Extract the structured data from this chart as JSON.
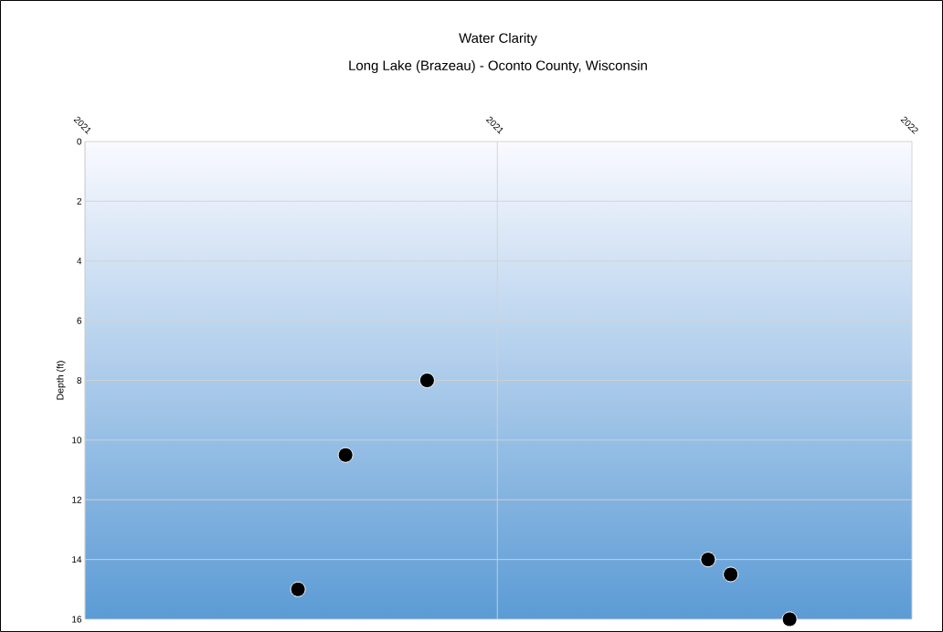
{
  "chart_data": {
    "type": "scatter",
    "title": "Water Clarity",
    "subtitle": "Long Lake (Brazeau) - Oconto County, Wisconsin",
    "ylabel": "Depth (ft)",
    "x": [
      "2021-04-05",
      "2021-04-26",
      "2021-06-01",
      "2021-10-03",
      "2021-10-13",
      "2021-11-08"
    ],
    "values": [
      15,
      10.5,
      8,
      14,
      14.5,
      16
    ],
    "color": "#000000",
    "marker": "circle",
    "xlim": [
      "2021-01-01",
      "2022-01-01"
    ],
    "xticks": [
      {
        "value": "2021-01-01",
        "label": "2021"
      },
      {
        "value": "2021-07-02",
        "label": "2021"
      },
      {
        "value": "2022-01-01",
        "label": "2022"
      }
    ],
    "ylim": [
      16,
      0
    ],
    "yticks": [
      0,
      2,
      4,
      6,
      8,
      10,
      12,
      14,
      16
    ],
    "grid": true
  }
}
